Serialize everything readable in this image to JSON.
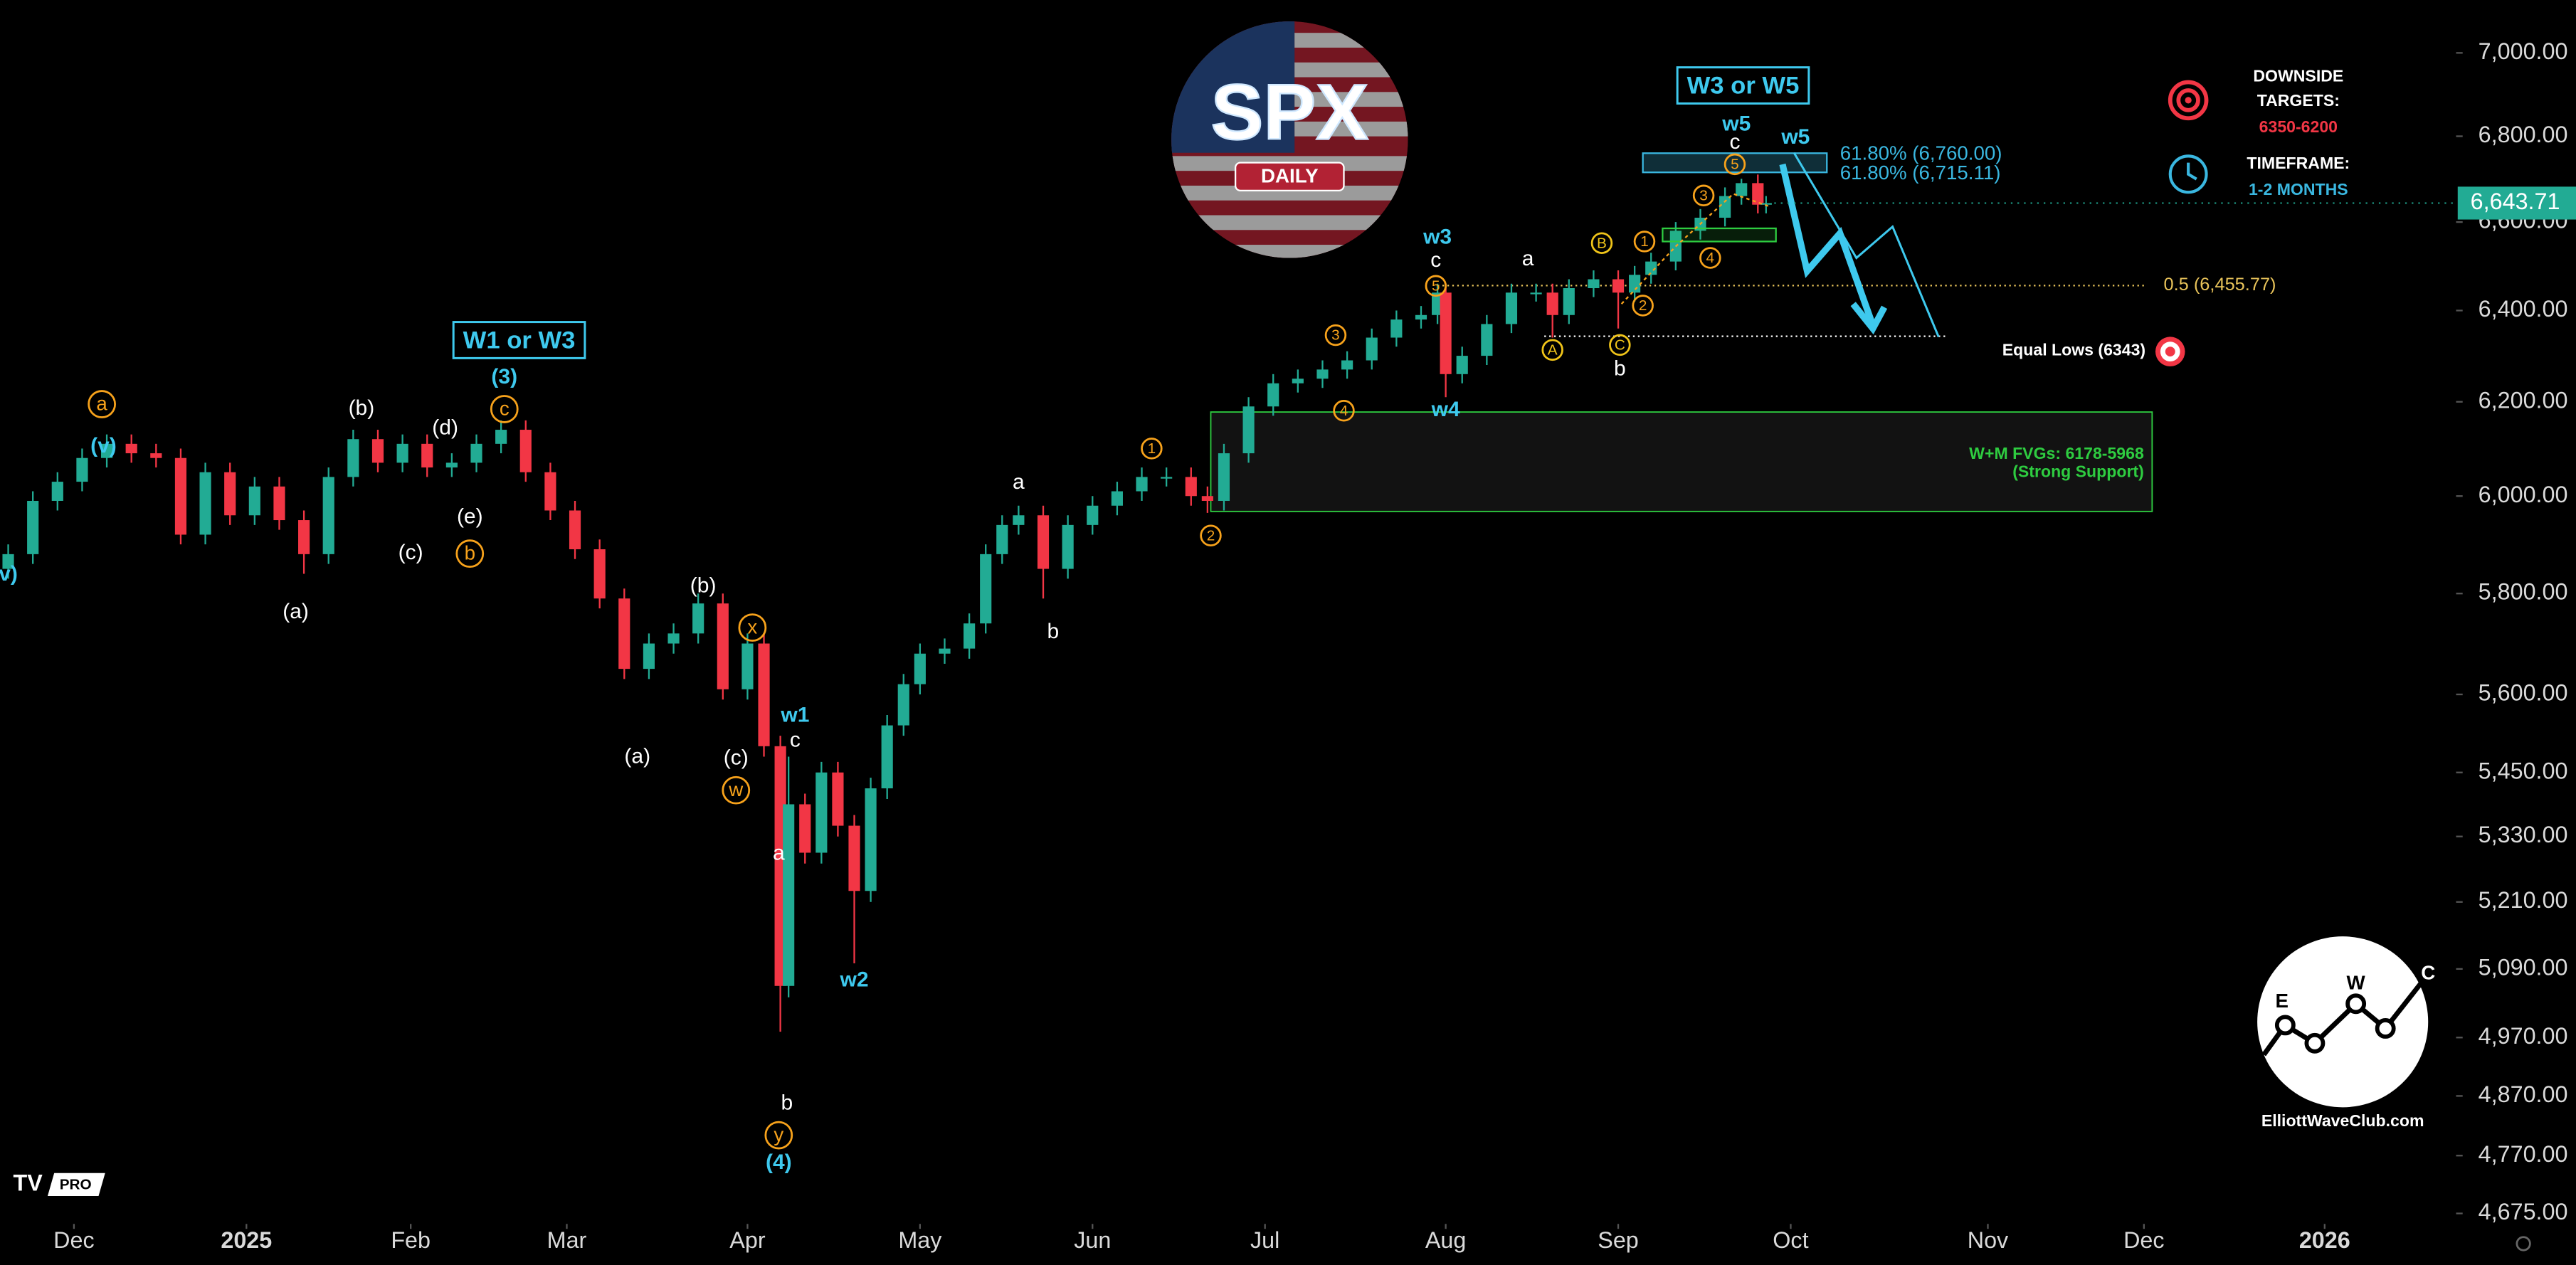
{
  "chart_data": {
    "type": "candlestick",
    "x": [
      1,
      4,
      7,
      10,
      13,
      16,
      19,
      22,
      25,
      28,
      31,
      34,
      37,
      40,
      43,
      46,
      49,
      52,
      55,
      58,
      61,
      64,
      67,
      70,
      73,
      76,
      79,
      82,
      85,
      88,
      91,
      93,
      95,
      96,
      98,
      100,
      102,
      104,
      106,
      108,
      110,
      112,
      115,
      118,
      120,
      122,
      124,
      127,
      130,
      133,
      136,
      139,
      142,
      145,
      147,
      149,
      152,
      155,
      158,
      161,
      164,
      167,
      170,
      173,
      175,
      176,
      178,
      181,
      184,
      187,
      189,
      191,
      194,
      197,
      199,
      201,
      204,
      207,
      210,
      212,
      214,
      215
    ],
    "open": [
      5850,
      5880,
      5990,
      6030,
      6080,
      6110,
      6090,
      6080,
      5920,
      6050,
      5960,
      6020,
      5950,
      5880,
      6040,
      6120,
      6070,
      6110,
      6060,
      6070,
      6110,
      6140,
      6050,
      5970,
      5890,
      5790,
      5650,
      5700,
      5720,
      5780,
      5610,
      5700,
      5500,
      5060,
      5390,
      5300,
      5450,
      5350,
      5230,
      5420,
      5540,
      5620,
      5680,
      5690,
      5740,
      5880,
      5940,
      5960,
      5850,
      5940,
      5980,
      6010,
      6040,
      6040,
      6000,
      5990,
      6090,
      6190,
      6240,
      6250,
      6270,
      6290,
      6340,
      6380,
      6390,
      6440,
      6260,
      6300,
      6370,
      6440,
      6440,
      6390,
      6450,
      6470,
      6440,
      6480,
      6510,
      6580,
      6610,
      6660,
      6690,
      6640
    ],
    "high": [
      5900,
      6010,
      6050,
      6100,
      6130,
      6130,
      6110,
      6100,
      6070,
      6070,
      6040,
      6040,
      5970,
      6060,
      6140,
      6140,
      6130,
      6130,
      6090,
      6130,
      6160,
      6160,
      6070,
      5990,
      5910,
      5810,
      5720,
      5740,
      5800,
      5800,
      5720,
      5720,
      5520,
      5480,
      5410,
      5470,
      5470,
      5370,
      5440,
      5560,
      5640,
      5700,
      5710,
      5760,
      5900,
      5960,
      5980,
      5980,
      5960,
      6000,
      6030,
      6060,
      6060,
      6060,
      6020,
      6110,
      6210,
      6260,
      6270,
      6290,
      6310,
      6360,
      6400,
      6410,
      6460,
      6460,
      6320,
      6390,
      6460,
      6460,
      6460,
      6470,
      6490,
      6490,
      6500,
      6530,
      6600,
      6630,
      6680,
      6700,
      6710,
      6660
    ],
    "low": [
      5830,
      5860,
      5970,
      6010,
      6060,
      6070,
      6060,
      5900,
      5900,
      5940,
      5940,
      5930,
      5840,
      5860,
      6020,
      6050,
      6050,
      6040,
      6040,
      6050,
      6090,
      6030,
      5950,
      5870,
      5770,
      5630,
      5630,
      5680,
      5700,
      5590,
      5590,
      5480,
      4980,
      5040,
      5280,
      5280,
      5330,
      5100,
      5210,
      5400,
      5520,
      5600,
      5660,
      5670,
      5720,
      5860,
      5920,
      5790,
      5830,
      5920,
      5960,
      5990,
      6020,
      5980,
      5965,
      5970,
      6070,
      6170,
      6220,
      6230,
      6250,
      6270,
      6320,
      6360,
      6370,
      6210,
      6240,
      6280,
      6350,
      6420,
      6340,
      6370,
      6430,
      6360,
      6420,
      6460,
      6490,
      6560,
      6590,
      6640,
      6620,
      6620
    ],
    "close": [
      5880,
      5990,
      6030,
      6080,
      6110,
      6090,
      6080,
      5920,
      6050,
      5960,
      6020,
      5950,
      5880,
      6040,
      6120,
      6070,
      6110,
      6060,
      6070,
      6110,
      6140,
      6050,
      5970,
      5890,
      5790,
      5650,
      5700,
      5720,
      5780,
      5610,
      5700,
      5500,
      5060,
      5390,
      5300,
      5450,
      5350,
      5230,
      5420,
      5540,
      5620,
      5680,
      5690,
      5740,
      5880,
      5940,
      5960,
      5850,
      5940,
      5980,
      6010,
      6040,
      6040,
      6000,
      5990,
      6090,
      6190,
      6240,
      6250,
      6270,
      6290,
      6340,
      6380,
      6390,
      6440,
      6260,
      6300,
      6370,
      6440,
      6440,
      6390,
      6450,
      6470,
      6440,
      6480,
      6510,
      6580,
      6610,
      6660,
      6690,
      6640,
      6643.71
    ],
    "up_color": "#22ab94",
    "down_color": "#f23645",
    "xlim": [
      0,
      299
    ],
    "xticks": [
      {
        "value": 9,
        "label": "Dec"
      },
      {
        "value": 30,
        "label": "2025"
      },
      {
        "value": 50,
        "label": "Feb"
      },
      {
        "value": 69,
        "label": "Mar"
      },
      {
        "value": 91,
        "label": "Apr"
      },
      {
        "value": 112,
        "label": "May"
      },
      {
        "value": 133,
        "label": "Jun"
      },
      {
        "value": 154,
        "label": "Jul"
      },
      {
        "value": 176,
        "label": "Aug"
      },
      {
        "value": 197,
        "label": "Sep"
      },
      {
        "value": 218,
        "label": "Oct"
      },
      {
        "value": 242,
        "label": "Nov"
      },
      {
        "value": 261,
        "label": "Dec"
      },
      {
        "value": 283,
        "label": "2026"
      }
    ],
    "ylim": [
      4650,
      7130
    ],
    "log_scale": true,
    "yticks": [
      {
        "value": 7000,
        "label": "7,000.00"
      },
      {
        "value": 6800,
        "label": "6,800.00"
      },
      {
        "value": 6600,
        "label": "6,600.00"
      },
      {
        "value": 6400,
        "label": "6,400.00"
      },
      {
        "value": 6200,
        "label": "6,200.00"
      },
      {
        "value": 6000,
        "label": "6,000.00"
      },
      {
        "value": 5800,
        "label": "5,800.00"
      },
      {
        "value": 5600,
        "label": "5,600.00"
      },
      {
        "value": 5450,
        "label": "5,450.00"
      },
      {
        "value": 5330,
        "label": "5,330.00"
      },
      {
        "value": 5210,
        "label": "5,210.00"
      },
      {
        "value": 5090,
        "label": "5,090.00"
      },
      {
        "value": 4970,
        "label": "4,970.00"
      },
      {
        "value": 4870,
        "label": "4,870.00"
      },
      {
        "value": 4770,
        "label": "4,770.00"
      },
      {
        "value": 4675,
        "label": "4,675.00"
      }
    ],
    "last": {
      "value": 6643.71,
      "label": "6,643.71"
    },
    "levels": [
      {
        "value": 6455.77,
        "label": "0.5 (6,455.77)",
        "color": "#e8c35a"
      },
      {
        "value": 6343,
        "label": "Equal Lows (6343)",
        "color": "#ffffff"
      }
    ],
    "fib_zone": {
      "high": 6760,
      "low": 6715.11,
      "labels": [
        "61.80% (6,760.00)",
        "61.80% (6,715.11)"
      ],
      "color": "#3ab7e0"
    },
    "fvg_zone": {
      "high": 6178,
      "low": 5968,
      "label": "W+M FVGs: 6178-5968",
      "sublabel": "(Strong Support)",
      "color": "#2ecc40"
    },
    "annotations": [
      "v)",
      "a",
      "(v)",
      "(b)",
      "(d)",
      "(c)",
      "(e)",
      "b",
      "(a)",
      "W1 or W3",
      "(3)",
      "c",
      "(b)",
      "x",
      "(a)",
      "(c)",
      "w",
      "w1",
      "c",
      "a",
      "w2",
      "b",
      "y",
      "(4)",
      "a",
      "b",
      "1",
      "2",
      "3",
      "4",
      "w3",
      "c",
      "5",
      "w4",
      "a",
      "B",
      "A",
      "C",
      "b",
      "1",
      "2",
      "3",
      "4",
      "5",
      "c",
      "w5",
      "W3 or W5",
      "w5"
    ]
  },
  "logo": {
    "title": "SPX",
    "subtitle": "DAILY"
  },
  "info": {
    "targets_title": [
      "DOWNSIDE",
      "TARGETS:"
    ],
    "targets": "6350-6200",
    "timeframe_title": "TIMEFRAME:",
    "timeframe": "1-2 MONTHS"
  },
  "brand": {
    "site": "ElliottWaveClub.com",
    "letters": [
      "E",
      "W",
      "C"
    ],
    "platform_badge": "PRO"
  }
}
